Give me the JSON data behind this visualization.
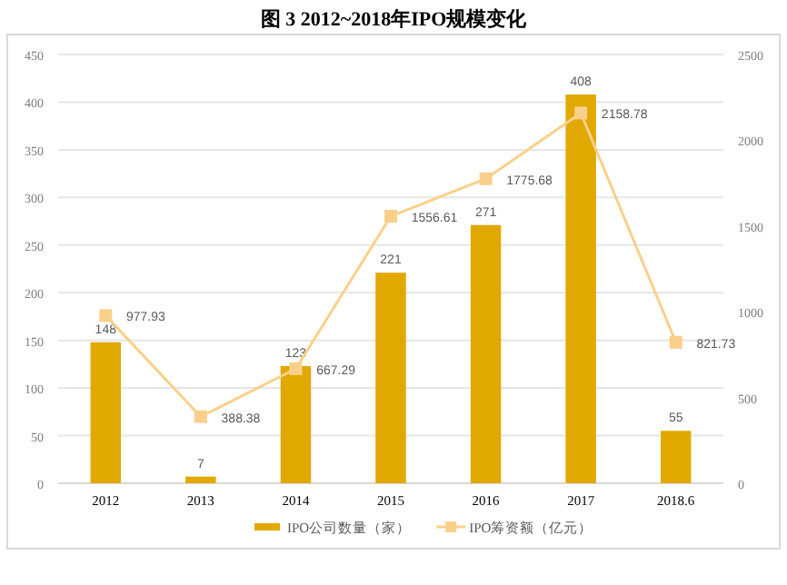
{
  "chart_data": {
    "type": "bar",
    "title": "图 3    2012~2018年IPO规模变化",
    "categories": [
      "2012",
      "2013",
      "2014",
      "2015",
      "2016",
      "2017",
      "2018.6"
    ],
    "series": [
      {
        "name": "IPO公司数量（家）",
        "color": "#e0a800",
        "values": [
          148,
          7,
          123,
          221,
          271,
          408,
          55
        ]
      },
      {
        "name": "IPO筹资额（亿元）",
        "type": "line",
        "axis": "y2",
        "color": "#f9d08b",
        "values": [
          977.93,
          388.38,
          667.29,
          1556.61,
          1775.68,
          2158.78,
          821.73
        ]
      }
    ],
    "ylim": [
      0,
      450
    ],
    "yticks": [
      0,
      50,
      100,
      150,
      200,
      250,
      300,
      350,
      400,
      450
    ],
    "y2lim": [
      0,
      2500
    ],
    "y2ticks": [
      0,
      500,
      1000,
      1500,
      2000,
      2500
    ],
    "grid": "y",
    "legend": "bottom",
    "marker": "square",
    "data_labels": true
  }
}
